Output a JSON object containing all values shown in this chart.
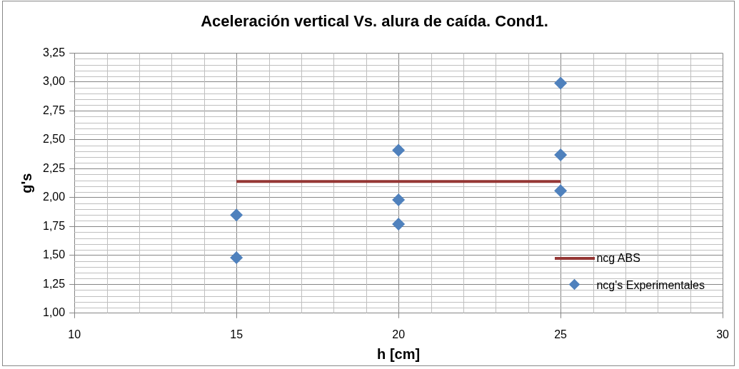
{
  "chart_data": {
    "type": "scatter",
    "title": "Aceleración vertical Vs. alura de caída. Cond1.",
    "xlabel": "h [cm]",
    "ylabel": "g's",
    "xlim": [
      10,
      30
    ],
    "xticks": [
      10,
      15,
      20,
      25,
      30
    ],
    "ylim": [
      1,
      3.25
    ],
    "yticks": [
      {
        "value": 1,
        "label": "1,00"
      },
      {
        "value": 1.25,
        "label": "1,25"
      },
      {
        "value": 1.5,
        "label": "1,50"
      },
      {
        "value": 1.75,
        "label": "1,75"
      },
      {
        "value": 2,
        "label": "2,00"
      },
      {
        "value": 2.25,
        "label": "2,25"
      },
      {
        "value": 2.5,
        "label": "2,50"
      },
      {
        "value": 2.75,
        "label": "2,75"
      },
      {
        "value": 3,
        "label": "3,00"
      },
      {
        "value": 3.25,
        "label": "3,25"
      }
    ],
    "grid": true,
    "legend": "bottom right",
    "marker": "diamond",
    "series": [
      {
        "name": "ncg ABS",
        "type": "line",
        "color": "#953735",
        "x": [
          15,
          25
        ],
        "values": [
          2.14,
          2.14
        ],
        "marker": "none",
        "line_style": "solid"
      },
      {
        "name": "ncg's Experimentales",
        "color": "#4f81bd",
        "x": [
          15,
          15,
          20,
          20,
          20,
          25,
          25,
          25
        ],
        "values": [
          1.85,
          1.48,
          2.41,
          1.98,
          1.77,
          2.99,
          2.37,
          2.06
        ]
      }
    ]
  }
}
